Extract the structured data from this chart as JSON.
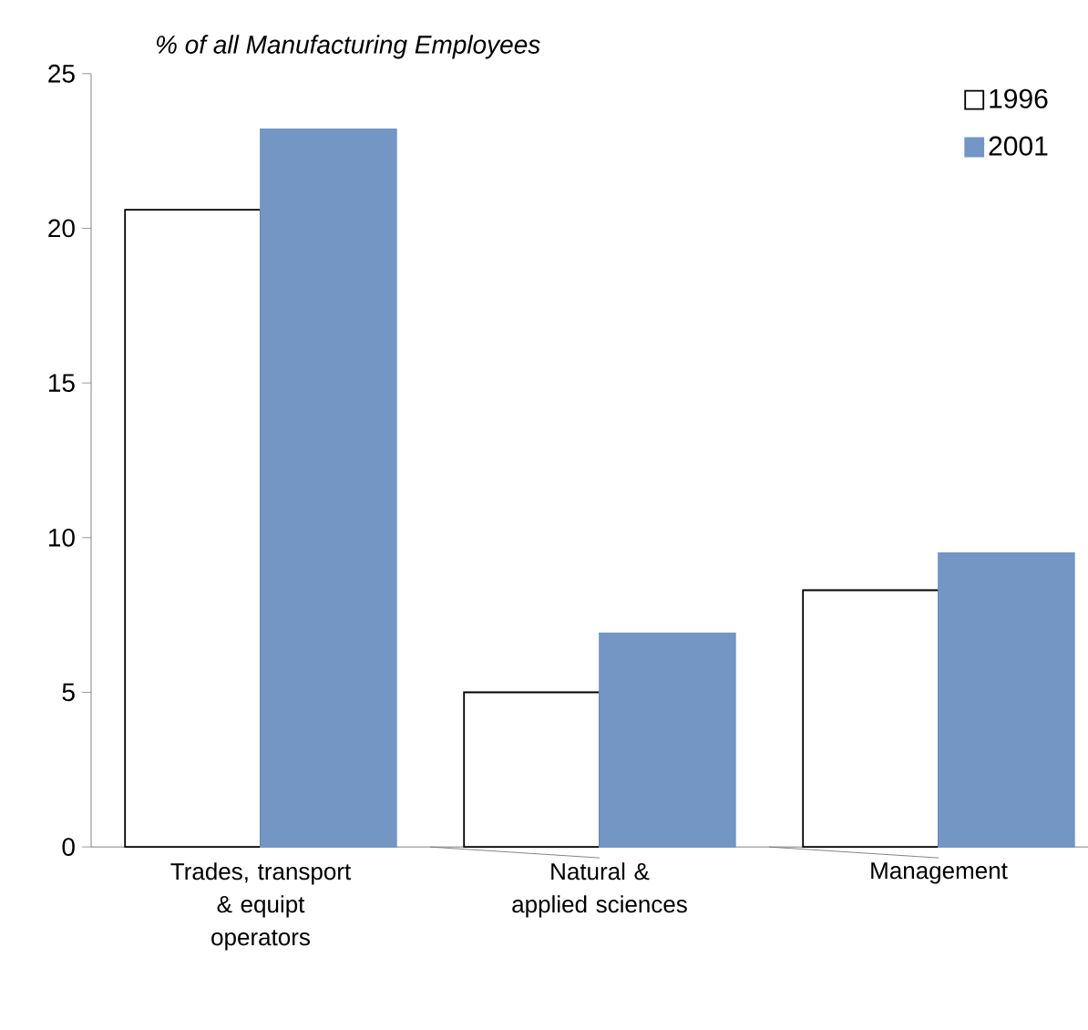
{
  "chart_data": {
    "type": "bar",
    "title": "% of all Manufacturing Employees",
    "categories": [
      "Trades, transport & equipt operators",
      "Natural & applied sciences",
      "Management"
    ],
    "series": [
      {
        "name": "1996",
        "color": "#ffffff",
        "values": [
          20.6,
          5.0,
          8.3
        ]
      },
      {
        "name": "2001",
        "color": "#7396c4",
        "values": [
          23.2,
          6.9,
          9.5
        ]
      }
    ],
    "ylim": [
      0,
      25
    ],
    "yticks": [
      0,
      5,
      10,
      15,
      20,
      25
    ],
    "grid": false,
    "legend": "top right"
  }
}
